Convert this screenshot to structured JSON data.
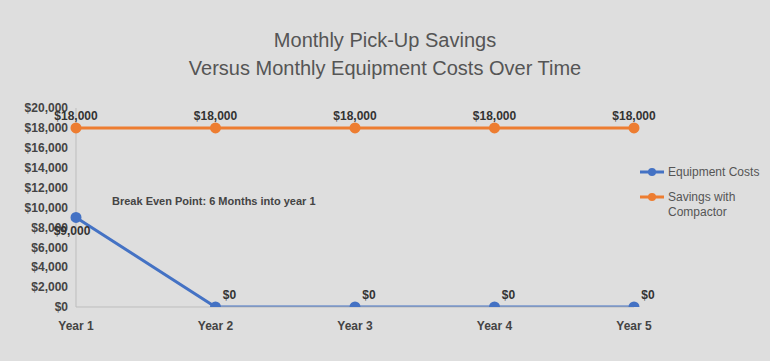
{
  "chart_data": {
    "type": "line",
    "title": "Monthly Pick-Up Savings",
    "subtitle": "Versus Monthly Equipment Costs Over Time",
    "categories": [
      "Year 1",
      "Year 2",
      "Year 3",
      "Year 4",
      "Year 5"
    ],
    "series": [
      {
        "name": "Equipment Costs",
        "color": "#4472c4",
        "values": [
          9000,
          0,
          0,
          0,
          0
        ],
        "value_labels": [
          "$9,000",
          "$0",
          "$0",
          "$0",
          "$0"
        ],
        "marker": "circle",
        "line_style": "solid"
      },
      {
        "name": "Savings with Compactor",
        "color": "#ed7d31",
        "values": [
          18000,
          18000,
          18000,
          18000,
          18000
        ],
        "value_labels": [
          "$18,000",
          "$18,000",
          "$18,000",
          "$18,000",
          "$18,000"
        ],
        "marker": "circle",
        "line_style": "solid"
      }
    ],
    "ylim": [
      0,
      20000
    ],
    "yticks": [
      {
        "value": 0,
        "label": "$0"
      },
      {
        "value": 2000,
        "label": "$2,000"
      },
      {
        "value": 4000,
        "label": "$4,000"
      },
      {
        "value": 6000,
        "label": "$6,000"
      },
      {
        "value": 8000,
        "label": "$8,000"
      },
      {
        "value": 10000,
        "label": "$10,000"
      },
      {
        "value": 12000,
        "label": "$12,000"
      },
      {
        "value": 14000,
        "label": "$14,000"
      },
      {
        "value": 16000,
        "label": "$16,000"
      },
      {
        "value": 18000,
        "label": "$18,000"
      },
      {
        "value": 20000,
        "label": "$20,000"
      }
    ],
    "grid": false,
    "legend": "right",
    "data_labels": true,
    "annotations": [
      "Break Even Point: 6 Months into year 1"
    ]
  }
}
